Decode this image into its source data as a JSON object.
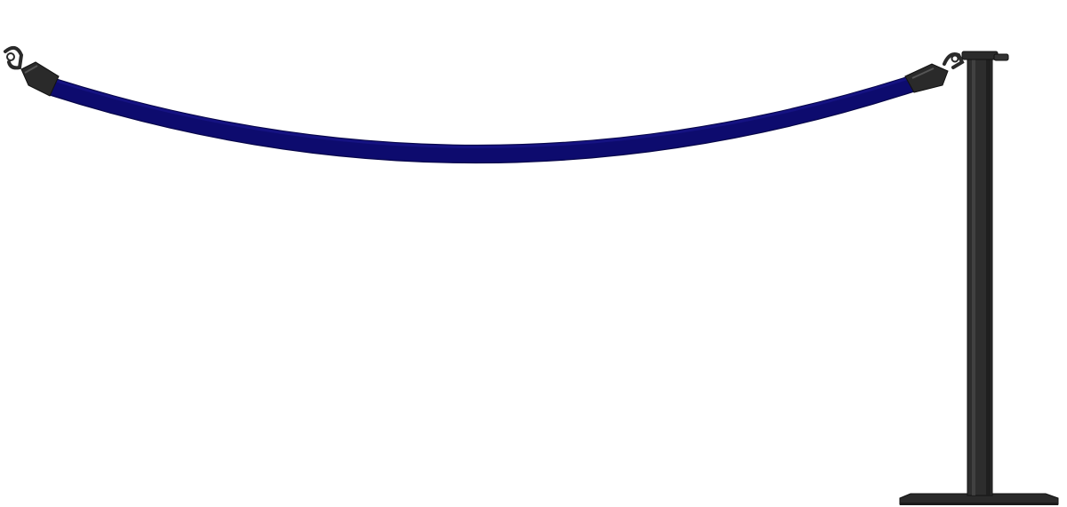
{
  "scene": {
    "subject": "stanchion-with-rope",
    "colors": {
      "background": "#ffffff",
      "rope": "#0d0b6e",
      "rope_edge": "#07064a",
      "hardware": "#2b2b2b",
      "hardware_dark": "#1b1b1b",
      "hardware_highlight": "#4a4a4a"
    },
    "icons": {
      "left_hook": "snap-hook-icon",
      "right_hook": "snap-hook-icon",
      "post": "stanchion-post",
      "base": "stanchion-base"
    }
  }
}
